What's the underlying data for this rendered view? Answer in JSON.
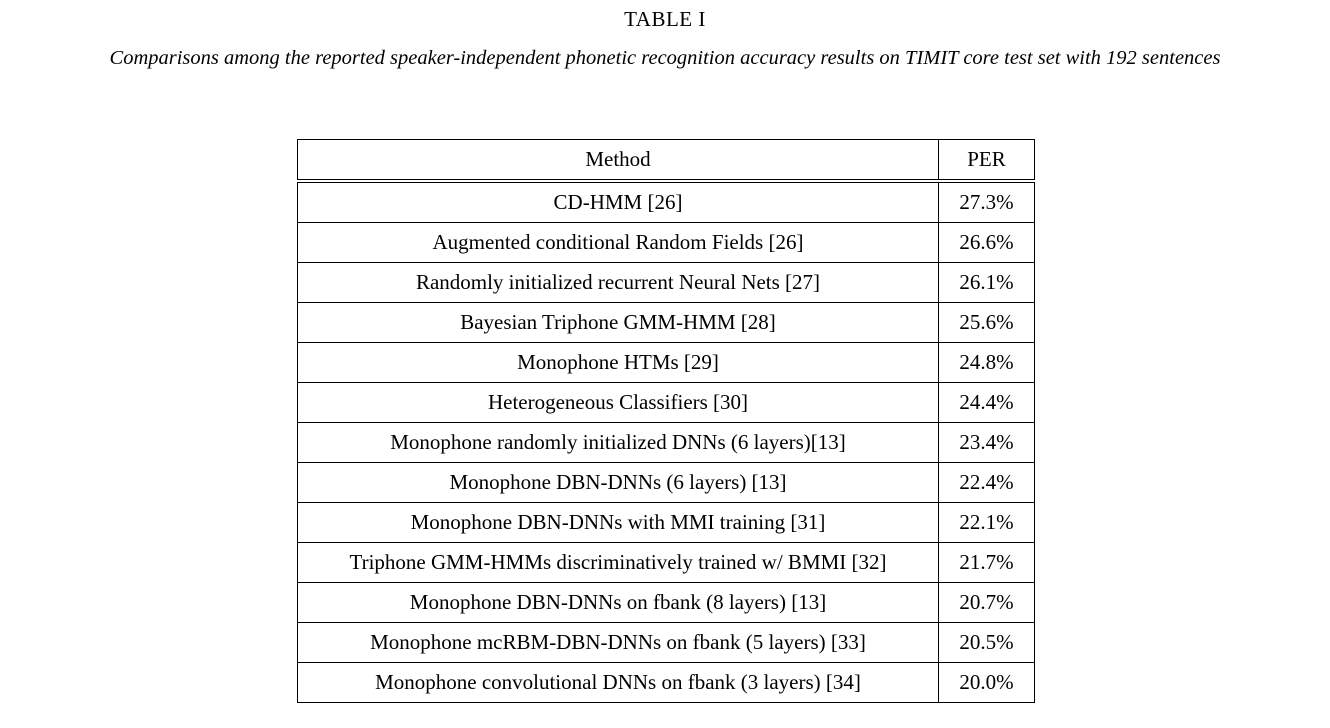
{
  "table_label": "TABLE I",
  "caption": "Comparisons among the reported speaker-independent phonetic recognition accuracy results on TIMIT core test set with 192 sentences",
  "table": {
    "headers": {
      "method": "Method",
      "per": "PER"
    },
    "rows": [
      {
        "method": "CD-HMM [26]",
        "per": "27.3%"
      },
      {
        "method": "Augmented conditional Random Fields [26]",
        "per": "26.6%"
      },
      {
        "method": "Randomly initialized recurrent Neural Nets [27]",
        "per": "26.1%"
      },
      {
        "method": "Bayesian Triphone GMM-HMM [28]",
        "per": "25.6%"
      },
      {
        "method": "Monophone HTMs [29]",
        "per": "24.8%"
      },
      {
        "method": "Heterogeneous Classifiers [30]",
        "per": "24.4%"
      },
      {
        "method": "Monophone randomly initialized DNNs (6 layers)[13]",
        "per": "23.4%"
      },
      {
        "method": "Monophone DBN-DNNs (6 layers) [13]",
        "per": "22.4%"
      },
      {
        "method": "Monophone DBN-DNNs with MMI training [31]",
        "per": "22.1%"
      },
      {
        "method": "Triphone GMM-HMMs discriminatively trained w/ BMMI [32]",
        "per": "21.7%"
      },
      {
        "method": "Monophone DBN-DNNs on fbank (8 layers) [13]",
        "per": "20.7%"
      },
      {
        "method": "Monophone mcRBM-DBN-DNNs on fbank (5 layers) [33]",
        "per": "20.5%"
      },
      {
        "method": "Monophone convolutional DNNs on fbank (3 layers) [34]",
        "per": "20.0%"
      }
    ]
  }
}
